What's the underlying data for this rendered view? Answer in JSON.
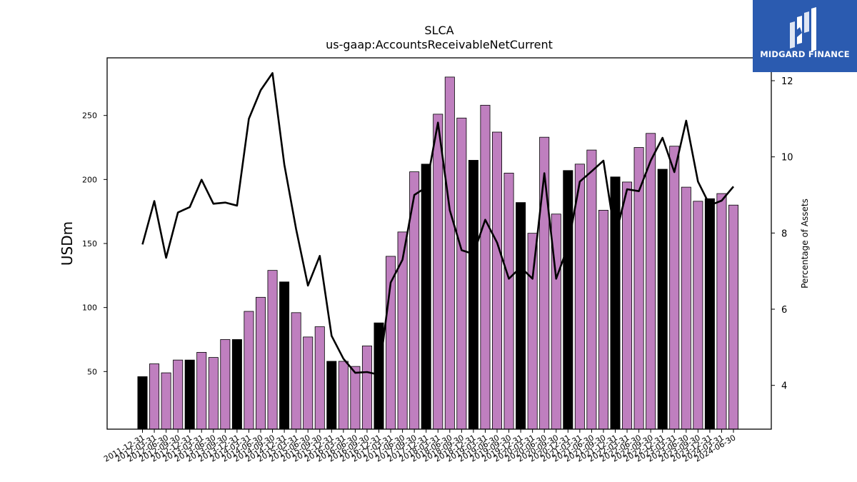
{
  "chart_data": {
    "type": "bar",
    "title": "SLCA",
    "subtitle": "us-gaap:AccountsReceivableNetCurrent",
    "ylabel": "USDm",
    "y2label": "Percentage of Assets",
    "ylim": [
      5,
      295
    ],
    "y2lim": [
      2.85,
      12.6
    ],
    "yticks": [
      50,
      100,
      150,
      200,
      250
    ],
    "y2ticks": [
      4,
      6,
      8,
      10,
      12
    ],
    "categories": [
      "2011-12-31",
      "2012-03-31",
      "2012-06-30",
      "2012-09-30",
      "2012-12-31",
      "2013-03-31",
      "2013-06-30",
      "2013-09-30",
      "2013-12-31",
      "2014-03-31",
      "2014-06-30",
      "2014-09-30",
      "2014-12-31",
      "2015-03-31",
      "2015-06-30",
      "2015-09-30",
      "2015-12-31",
      "2016-03-31",
      "2016-06-30",
      "2016-09-30",
      "2016-12-31",
      "2017-03-31",
      "2017-06-30",
      "2017-09-30",
      "2017-12-31",
      "2018-03-31",
      "2018-06-30",
      "2018-09-30",
      "2018-12-31",
      "2019-03-31",
      "2019-06-30",
      "2019-09-30",
      "2019-12-31",
      "2020-03-31",
      "2020-06-30",
      "2020-09-30",
      "2020-12-31",
      "2021-03-31",
      "2021-06-30",
      "2021-09-30",
      "2021-12-31",
      "2022-03-31",
      "2022-06-30",
      "2022-09-30",
      "2022-12-31",
      "2023-03-31",
      "2023-06-30",
      "2023-09-30",
      "2023-12-31",
      "2024-03-31",
      "2024-06-30"
    ],
    "series": [
      {
        "type": "bar",
        "values": [
          46,
          56,
          49,
          59,
          59,
          65,
          61,
          75,
          75,
          97,
          108,
          129,
          120,
          96,
          77,
          85,
          58,
          58,
          54,
          70,
          88,
          140,
          159,
          206,
          212,
          251,
          280,
          248,
          215,
          258,
          237,
          205,
          182,
          158,
          233,
          173,
          207,
          212,
          223,
          176,
          202,
          198,
          225,
          236,
          208,
          226,
          194,
          183,
          185,
          189,
          180
        ]
      },
      {
        "type": "line",
        "axis": "right",
        "values": [
          7.7,
          8.84,
          7.35,
          8.54,
          8.68,
          9.4,
          8.77,
          8.8,
          8.72,
          11.0,
          11.75,
          12.2,
          9.8,
          8.1,
          6.62,
          7.4,
          5.3,
          4.7,
          4.33,
          4.35,
          4.28,
          6.7,
          7.3,
          9.0,
          9.2,
          10.9,
          8.6,
          7.55,
          7.45,
          8.35,
          7.75,
          6.8,
          7.1,
          6.8,
          9.57,
          6.8,
          7.65,
          9.35,
          9.62,
          9.9,
          7.9,
          9.15,
          9.1,
          9.9,
          10.5,
          9.6,
          10.95,
          9.35,
          8.73,
          8.85,
          9.22
        ]
      }
    ],
    "bar_colors": {
      "default": "#bf7fbf",
      "year_end": "#000000"
    },
    "line_color": "#000000"
  },
  "logo": {
    "text": "MIDGARD FINANCE"
  }
}
